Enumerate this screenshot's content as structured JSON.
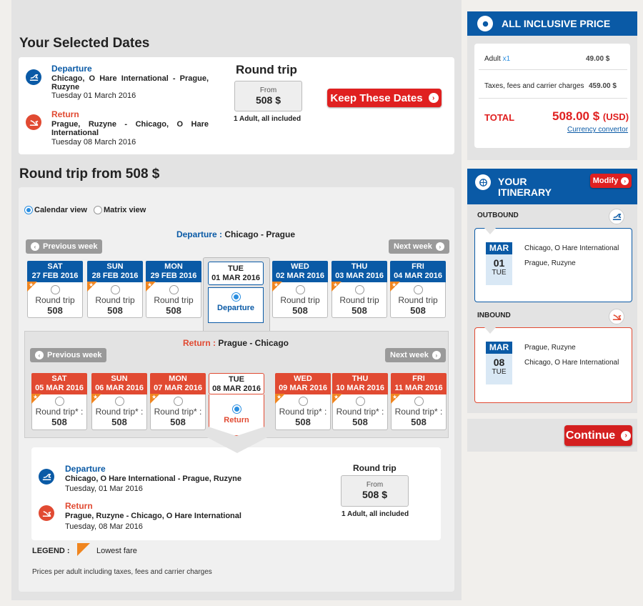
{
  "selected_dates": {
    "title": "Your Selected Dates",
    "departure_label": "Departure",
    "departure_route": "Chicago, O Hare International - Prague, Ruzyne",
    "departure_date": "Tuesday 01 March 2016",
    "return_label": "Return",
    "return_route": "Prague, Ruzyne - Chicago, O Hare International",
    "return_date": "Tuesday 08 March 2016",
    "trip_type": "Round trip",
    "from_label": "From",
    "price": "508 $",
    "passengers": "1 Adult, all included",
    "keep_button": "Keep These Dates"
  },
  "roundtrip": {
    "title": "Round trip from 508 $",
    "calendar_view": "Calendar view",
    "matrix_view": "Matrix view",
    "departure_caption_label": "Departure :",
    "departure_caption_route": "Chicago - Prague",
    "return_caption_label": "Return :",
    "return_caption_route": "Prague - Chicago",
    "prev_week": "Previous week",
    "next_week": "Next week",
    "outbound_days": [
      {
        "dow": "SAT",
        "date": "27 FEB 2016",
        "label": "Round trip",
        "price": "508"
      },
      {
        "dow": "SUN",
        "date": "28 FEB 2016",
        "label": "Round trip",
        "price": "508"
      },
      {
        "dow": "MON",
        "date": "29 FEB 2016",
        "label": "Round trip",
        "price": "508"
      },
      {
        "dow": "TUE",
        "date": "01 MAR 2016",
        "label": "Departure",
        "price": ""
      },
      {
        "dow": "WED",
        "date": "02 MAR 2016",
        "label": "Round trip",
        "price": "508"
      },
      {
        "dow": "THU",
        "date": "03 MAR 2016",
        "label": "Round trip",
        "price": "508"
      },
      {
        "dow": "FRI",
        "date": "04 MAR 2016",
        "label": "Round trip",
        "price": "508"
      }
    ],
    "return_days": [
      {
        "dow": "SAT",
        "date": "05 MAR 2016",
        "label": "Round trip* :",
        "price": "508"
      },
      {
        "dow": "SUN",
        "date": "06 MAR 2016",
        "label": "Round trip* :",
        "price": "508"
      },
      {
        "dow": "MON",
        "date": "07 MAR 2016",
        "label": "Round trip* :",
        "price": "508"
      },
      {
        "dow": "TUE",
        "date": "08 MAR 2016",
        "label": "Return",
        "price": ""
      },
      {
        "dow": "WED",
        "date": "09 MAR 2016",
        "label": "Round trip* :",
        "price": "508"
      },
      {
        "dow": "THU",
        "date": "10 MAR 2016",
        "label": "Round trip* :",
        "price": "508"
      },
      {
        "dow": "FRI",
        "date": "11 MAR 2016",
        "label": "Round trip* :",
        "price": "508"
      }
    ],
    "summary": {
      "departure_label": "Departure",
      "departure_route": "Chicago, O Hare International - Prague, Ruzyne",
      "departure_date": "Tuesday, 01 Mar 2016",
      "return_label": "Return",
      "return_route": "Prague, Ruzyne - Chicago, O Hare International",
      "return_date": "Tuesday, 08 Mar 2016",
      "trip_type": "Round trip",
      "from_label": "From",
      "price": "508 $",
      "passengers": "1 Adult, all included"
    },
    "legend_label": "LEGEND :",
    "legend_text": "Lowest fare",
    "footnote": "Prices per adult including taxes, fees and carrier charges"
  },
  "price_box": {
    "title": "ALL INCLUSIVE PRICE",
    "adult_label": "Adult",
    "adult_count": "x1",
    "adult_price": "49.00 $",
    "taxes_label": "Taxes, fees and carrier charges",
    "taxes_price": "459.00 $",
    "total_label": "TOTAL",
    "total_price": "508.00 $",
    "total_currency": "(USD)",
    "converter_link": "Currency convertor"
  },
  "itinerary": {
    "title_line1": "YOUR",
    "title_line2": "ITINERARY",
    "modify": "Modify",
    "outbound_label": "OUTBOUND",
    "inbound_label": "INBOUND",
    "outbound": {
      "month": "MAR",
      "day": "01",
      "dow": "TUE",
      "from": "Chicago, O Hare International",
      "to": "Prague, Ruzyne"
    },
    "inbound": {
      "month": "MAR",
      "day": "08",
      "dow": "TUE",
      "from": "Prague, Ruzyne",
      "to": "Chicago, O Hare International"
    }
  },
  "continue_button": "Continue",
  "colors": {
    "blue": "#0a5aa6",
    "red": "#e14a32",
    "button_red": "#e02020"
  }
}
